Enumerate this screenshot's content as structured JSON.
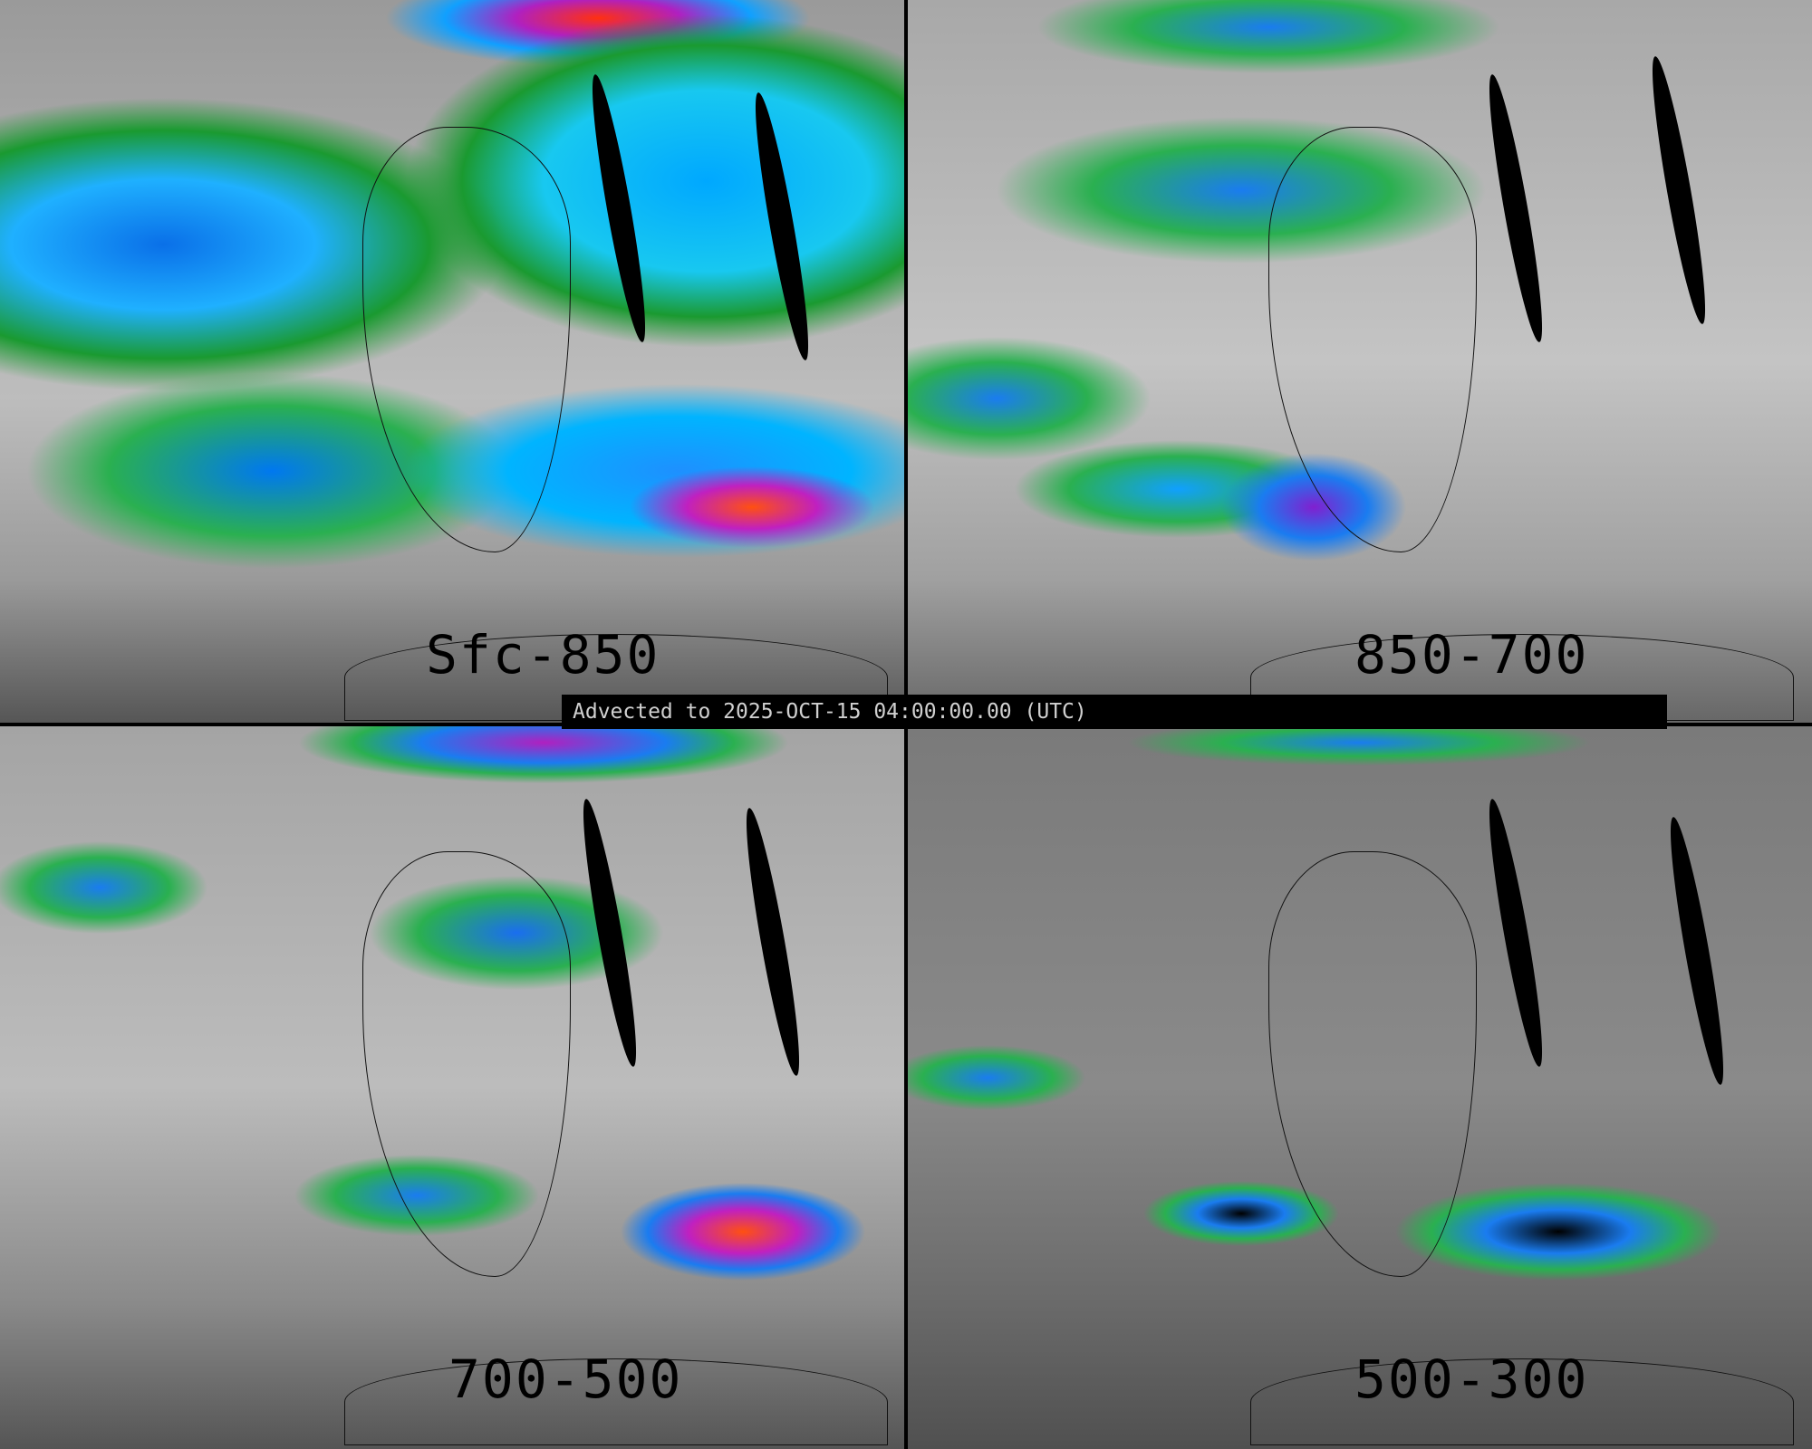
{
  "banner": {
    "text": "Advected to 2025-OCT-15 04:00:00.00 (UTC)"
  },
  "panels": [
    {
      "layer": "Sfc-850"
    },
    {
      "layer": "850-700"
    },
    {
      "layer": "700-500"
    },
    {
      "layer": "500-300"
    }
  ],
  "colors": {
    "background_gray": "#a0a0a0",
    "low": "#2ab050",
    "mid": "#1a7cf0",
    "high": "#c020c0",
    "max": "#ff5010",
    "missing": "#000000"
  }
}
